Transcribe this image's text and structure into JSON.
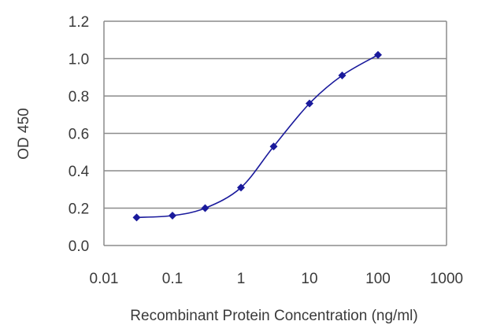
{
  "chart_data": {
    "type": "line",
    "title": "",
    "xlabel": "Recombinant Protein Concentration (ng/ml)",
    "ylabel": "OD 450",
    "x_scale": "log",
    "xlim": [
      0.01,
      1000
    ],
    "ylim": [
      0,
      1.2
    ],
    "x_ticks": [
      0.01,
      0.1,
      1,
      10,
      100,
      1000
    ],
    "x_tick_labels": [
      "0.01",
      "0.1",
      "1",
      "10",
      "100",
      "1000"
    ],
    "y_ticks": [
      0,
      0.2,
      0.4,
      0.6,
      0.8,
      1.0,
      1.2
    ],
    "y_tick_labels": [
      "0.0",
      "0.2",
      "0.4",
      "0.6",
      "0.8",
      "1.0",
      "1.2"
    ],
    "grid": "horizontal",
    "legend": "none",
    "series": [
      {
        "x": [
          0.03,
          0.1,
          0.3,
          1,
          3,
          10,
          30,
          100
        ],
        "y": [
          0.15,
          0.16,
          0.2,
          0.31,
          0.53,
          0.76,
          0.91,
          1.02
        ],
        "color": "#1a1a9c"
      }
    ],
    "colors": {
      "line": "#1a1a9c",
      "marker": "#1a1a9c",
      "grid": "#8c8c8c",
      "axis": "#8c8c8c"
    }
  }
}
